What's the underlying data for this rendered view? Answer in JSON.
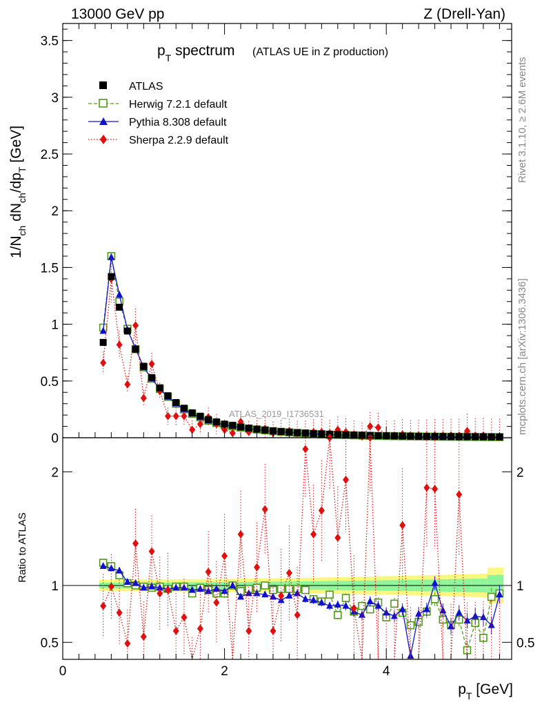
{
  "header": {
    "left": "13000 GeV pp",
    "right": "Z (Drell-Yan)"
  },
  "title": {
    "main_pre": "p",
    "main_sub": "T",
    "main_post": " spectrum",
    "subtitle": "(ATLAS UE in Z production)"
  },
  "side_text": {
    "rivet": "Rivet 3.1.10, ≥ 2.6M events",
    "mcplots": "mcplots.cern.ch [arXiv:1306.3436]"
  },
  "watermark": "ATLAS_2019_I1736531",
  "colors": {
    "atlas": "#000000",
    "herwig": "#4f9a1c",
    "pythia": "#1010cc",
    "sherpa": "#e01010",
    "band_inner": "#8ef59a",
    "band_outer": "#f8f880"
  },
  "chart_data": [
    {
      "type": "line",
      "panel": "main",
      "ylabel": "1/N_ch dN_ch/dp_T [GeV]",
      "ylabel_parts": {
        "a": "1/N",
        "a_sub": "ch",
        "b": " dN",
        "b_sub": "ch",
        "c": "/dp",
        "c_sub": "T",
        "d": " [GeV]"
      },
      "xlim": [
        0,
        5.55
      ],
      "ylim": [
        0,
        3.65
      ],
      "yticks": [
        "0",
        "0.5",
        "1",
        "1.5",
        "2",
        "2.5",
        "3",
        "3.5"
      ],
      "legend_position": "top-left",
      "x": [
        0.5,
        0.6,
        0.7,
        0.8,
        0.9,
        1.0,
        1.1,
        1.2,
        1.3,
        1.4,
        1.5,
        1.6,
        1.7,
        1.8,
        1.9,
        2.0,
        2.1,
        2.2,
        2.3,
        2.4,
        2.5,
        2.6,
        2.7,
        2.8,
        2.9,
        3.0,
        3.1,
        3.2,
        3.3,
        3.4,
        3.5,
        3.6,
        3.7,
        3.8,
        3.9,
        4.0,
        4.1,
        4.2,
        4.3,
        4.4,
        4.5,
        4.6,
        4.7,
        4.8,
        4.9,
        5.0,
        5.1,
        5.2,
        5.3,
        5.4
      ],
      "series": [
        {
          "name": "ATLAS",
          "values": [
            0.84,
            1.42,
            1.15,
            0.94,
            0.78,
            0.63,
            0.53,
            0.44,
            0.37,
            0.31,
            0.26,
            0.22,
            0.19,
            0.16,
            0.14,
            0.12,
            0.11,
            0.095,
            0.085,
            0.076,
            0.068,
            0.061,
            0.055,
            0.05,
            0.045,
            0.041,
            0.037,
            0.034,
            0.031,
            0.028,
            0.026,
            0.024,
            0.022,
            0.02,
            0.018,
            0.017,
            0.016,
            0.015,
            0.014,
            0.013,
            0.012,
            0.011,
            0.0105,
            0.01,
            0.0095,
            0.009,
            0.0085,
            0.008,
            0.0075,
            0.007
          ]
        },
        {
          "name": "Herwig 7.2.1 default",
          "values": [
            0.97,
            1.6,
            1.2,
            0.96,
            0.78,
            0.62,
            0.52,
            0.43,
            0.36,
            0.3,
            0.25,
            0.21,
            0.18,
            0.15,
            0.13,
            0.11,
            0.1,
            0.09,
            0.08,
            0.072,
            0.065,
            0.058,
            0.052,
            0.047,
            0.042,
            0.038,
            0.034,
            0.03,
            0.027,
            0.025,
            0.023,
            0.021,
            0.019,
            0.017,
            0.016,
            0.015,
            0.014,
            0.013,
            0.012,
            0.011,
            0.01,
            0.0095,
            0.009,
            0.0085,
            0.008,
            0.0075,
            0.007,
            0.0065,
            0.006,
            0.0055
          ]
        },
        {
          "name": "Pythia 8.308 default",
          "values": [
            0.94,
            1.59,
            1.26,
            0.95,
            0.79,
            0.62,
            0.52,
            0.43,
            0.36,
            0.3,
            0.25,
            0.21,
            0.18,
            0.15,
            0.13,
            0.115,
            0.1,
            0.09,
            0.08,
            0.072,
            0.064,
            0.057,
            0.051,
            0.046,
            0.041,
            0.037,
            0.033,
            0.03,
            0.027,
            0.025,
            0.023,
            0.021,
            0.019,
            0.017,
            0.016,
            0.015,
            0.014,
            0.013,
            0.012,
            0.011,
            0.01,
            0.0095,
            0.009,
            0.0085,
            0.008,
            0.0075,
            0.007,
            0.0065,
            0.006,
            0.0055
          ]
        },
        {
          "name": "Sherpa 2.2.9 default",
          "values": [
            0.66,
            1.4,
            0.82,
            0.47,
            0.99,
            0.35,
            0.65,
            0.41,
            0.19,
            0.19,
            0.19,
            0.07,
            0.12,
            0.18,
            0.12,
            0.07,
            0.04,
            0.14,
            0.05,
            0.08,
            0.08,
            0.04,
            0.05,
            0.06,
            0.04,
            0.04,
            0.05,
            0.05,
            0.04,
            0.07,
            0.05,
            0.03,
            0.01,
            0.1,
            0.09,
            0.02,
            0.02,
            0.03,
            0.02,
            0.02,
            0.02,
            0.02,
            0.02,
            0.02,
            0.02,
            0.06,
            0.02,
            0.02,
            0.01,
            0.01
          ]
        }
      ]
    },
    {
      "type": "line",
      "panel": "ratio",
      "xlabel": "p_T [GeV]",
      "xlabel_parts": {
        "a": "p",
        "a_sub": "T",
        "b": " [GeV]"
      },
      "ylabel": "Ratio to ATLAS",
      "xlim": [
        0,
        5.55
      ],
      "ylim": [
        0.35,
        2.3
      ],
      "xticks": [
        "0",
        "2",
        "4"
      ],
      "yticks": [
        "0.5",
        "1",
        "2"
      ],
      "x": [
        0.5,
        0.6,
        0.7,
        0.8,
        0.9,
        1.0,
        1.1,
        1.2,
        1.3,
        1.4,
        1.5,
        1.6,
        1.7,
        1.8,
        1.9,
        2.0,
        2.1,
        2.2,
        2.3,
        2.4,
        2.5,
        2.6,
        2.7,
        2.8,
        2.9,
        3.0,
        3.1,
        3.2,
        3.3,
        3.4,
        3.5,
        3.6,
        3.7,
        3.8,
        3.9,
        4.0,
        4.1,
        4.2,
        4.3,
        4.4,
        4.5,
        4.6,
        4.7,
        4.8,
        4.9,
        5.0,
        5.1,
        5.2,
        5.3,
        5.4
      ],
      "series": [
        {
          "name": "Herwig 7.2.1 default",
          "values": [
            1.2,
            1.17,
            1.09,
            1.02,
            1.0,
            0.99,
            0.98,
            0.99,
            0.97,
            0.99,
            0.99,
            0.93,
            0.98,
            0.96,
            0.93,
            0.93,
            1.0,
            0.95,
            0.97,
            0.98,
            1.0,
            0.96,
            0.97,
            0.97,
            0.97,
            0.96,
            0.88,
            0.86,
            0.92,
            0.74,
            0.89,
            0.77,
            0.82,
            0.79,
            0.85,
            0.72,
            0.84,
            0.76,
            0.65,
            0.68,
            0.77,
            0.88,
            0.7,
            0.65,
            0.7,
            0.43,
            0.67,
            0.54,
            0.9,
            0.93
          ]
        },
        {
          "name": "Pythia 8.308 default",
          "values": [
            1.17,
            1.15,
            1.13,
            1.03,
            1.02,
            0.98,
            0.99,
            0.98,
            0.97,
            0.98,
            0.98,
            0.96,
            0.97,
            0.95,
            0.97,
            0.95,
            1.0,
            0.9,
            0.93,
            0.93,
            0.92,
            0.9,
            0.87,
            0.91,
            0.93,
            0.88,
            0.87,
            0.85,
            0.82,
            0.83,
            0.82,
            0.77,
            0.74,
            0.86,
            0.82,
            0.76,
            0.73,
            0.79,
            0.38,
            0.75,
            0.79,
            1.02,
            0.78,
            0.64,
            0.76,
            0.69,
            0.73,
            0.72,
            0.65,
            0.92
          ]
        },
        {
          "name": "Sherpa 2.2.9 default",
          "values": [
            0.82,
            0.99,
            0.76,
            0.49,
            1.37,
            0.55,
            1.3,
            0.93,
            0.96,
            0.6,
            0.72,
            0.2,
            0.62,
            1.12,
            0.85,
            1.26,
            0.3,
            1.45,
            0.6,
            1.16,
            1.67,
            0.6,
            0.91,
            1.11,
            0.74,
            2.2,
            1.45,
            1.66,
            2.3,
            1.42,
            1.93,
            0.8,
            0.3,
            2.3,
            0.3,
            0.3,
            0.3,
            1.53,
            0.3,
            0.3,
            1.86,
            1.85,
            0.3,
            0.3,
            1.8,
            0.3,
            0.3,
            0.3,
            0.3,
            0.3
          ]
        }
      ]
    }
  ]
}
